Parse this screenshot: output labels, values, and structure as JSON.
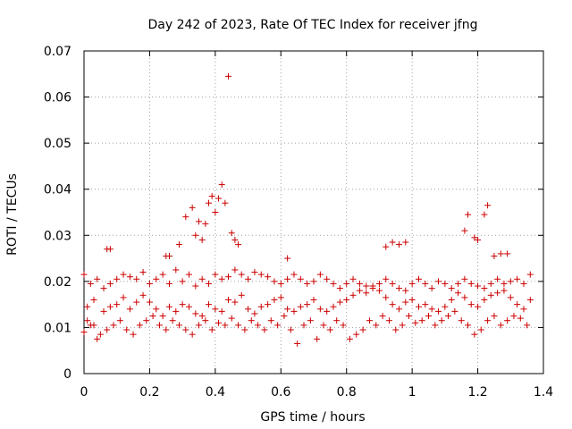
{
  "chart_data": {
    "type": "scatter",
    "title": "Day 242 of 2023, Rate Of TEC Index for receiver jfng",
    "xlabel": "GPS time / hours",
    "ylabel": "ROTI / TECUs",
    "xlim": [
      0,
      1.4
    ],
    "ylim": [
      0,
      0.07
    ],
    "x_ticks": [
      0,
      0.2,
      0.4,
      0.6,
      0.8,
      1.0,
      1.2,
      1.4
    ],
    "x_tick_labels": [
      "0",
      "0.2",
      "0.4",
      "0.6",
      "0.8",
      "1",
      "1.2",
      "1.4"
    ],
    "y_ticks": [
      0,
      0.01,
      0.02,
      0.03,
      0.04,
      0.05,
      0.06,
      0.07
    ],
    "y_tick_labels": [
      "0",
      "0.01",
      "0.02",
      "0.03",
      "0.04",
      "0.05",
      "0.06",
      "0.07"
    ],
    "grid": true,
    "marker": "+",
    "marker_color": "#cc0000",
    "series": [
      {
        "name": "ROTI",
        "x": [
          0.0,
          0.01,
          0.02,
          0.03,
          0.04,
          0.06,
          0.08,
          0.1,
          0.12,
          0.14,
          0.16,
          0.18,
          0.2,
          0.22,
          0.24,
          0.26,
          0.28,
          0.3,
          0.32,
          0.34,
          0.36,
          0.38,
          0.4,
          0.42,
          0.44,
          0.46,
          0.48,
          0.5,
          0.52,
          0.54,
          0.56,
          0.58,
          0.6,
          0.62,
          0.64,
          0.66,
          0.68,
          0.7,
          0.72,
          0.74,
          0.76,
          0.78,
          0.8,
          0.82,
          0.84,
          0.86,
          0.88,
          0.9,
          0.92,
          0.94,
          0.96,
          0.98,
          1.0,
          1.02,
          1.04,
          1.06,
          1.08,
          1.1,
          1.12,
          1.14,
          1.16,
          1.18,
          1.2,
          1.22,
          1.24,
          1.26,
          1.28,
          1.3,
          1.32,
          1.34,
          1.36,
          0.0,
          0.02,
          0.04,
          0.06,
          0.08,
          0.1,
          0.12,
          0.14,
          0.16,
          0.18,
          0.2,
          0.22,
          0.24,
          0.26,
          0.28,
          0.3,
          0.32,
          0.34,
          0.36,
          0.38,
          0.4,
          0.42,
          0.44,
          0.46,
          0.48,
          0.5,
          0.52,
          0.54,
          0.56,
          0.58,
          0.6,
          0.62,
          0.64,
          0.66,
          0.68,
          0.7,
          0.72,
          0.74,
          0.76,
          0.78,
          0.8,
          0.82,
          0.84,
          0.86,
          0.88,
          0.9,
          0.92,
          0.94,
          0.96,
          0.98,
          1.0,
          1.02,
          1.04,
          1.06,
          1.08,
          1.1,
          1.12,
          1.14,
          1.16,
          1.18,
          1.2,
          1.22,
          1.24,
          1.26,
          1.28,
          1.3,
          1.32,
          1.34,
          1.36,
          0.01,
          0.03,
          0.05,
          0.07,
          0.09,
          0.11,
          0.13,
          0.15,
          0.17,
          0.19,
          0.21,
          0.23,
          0.25,
          0.27,
          0.29,
          0.31,
          0.33,
          0.35,
          0.37,
          0.39,
          0.41,
          0.43,
          0.45,
          0.47,
          0.49,
          0.51,
          0.53,
          0.55,
          0.57,
          0.59,
          0.61,
          0.63,
          0.65,
          0.67,
          0.69,
          0.71,
          0.73,
          0.75,
          0.77,
          0.79,
          0.81,
          0.83,
          0.85,
          0.87,
          0.89,
          0.91,
          0.93,
          0.95,
          0.97,
          0.99,
          1.01,
          1.03,
          1.05,
          1.07,
          1.09,
          1.11,
          1.13,
          1.15,
          1.17,
          1.19,
          1.21,
          1.23,
          1.25,
          1.27,
          1.29,
          1.31,
          1.33,
          1.35,
          0.29,
          0.31,
          0.33,
          0.34,
          0.35,
          0.36,
          0.37,
          0.38,
          0.39,
          0.4,
          0.41,
          0.42,
          0.43,
          0.44,
          0.45,
          0.46,
          0.47,
          0.08,
          0.07,
          0.25,
          0.26,
          0.62,
          0.92,
          0.94,
          0.96,
          0.98,
          1.16,
          1.17,
          1.19,
          1.2,
          1.22,
          1.23,
          1.25,
          1.27,
          1.29
        ],
        "y": [
          0.009,
          0.0145,
          0.0105,
          0.016,
          0.0075,
          0.0135,
          0.0145,
          0.015,
          0.0165,
          0.014,
          0.0155,
          0.017,
          0.0155,
          0.014,
          0.0125,
          0.0145,
          0.0135,
          0.015,
          0.0145,
          0.013,
          0.0125,
          0.015,
          0.014,
          0.0135,
          0.016,
          0.0155,
          0.017,
          0.014,
          0.013,
          0.0145,
          0.015,
          0.016,
          0.0165,
          0.014,
          0.0135,
          0.0145,
          0.015,
          0.016,
          0.014,
          0.0135,
          0.0145,
          0.0155,
          0.016,
          0.017,
          0.018,
          0.0175,
          0.019,
          0.018,
          0.0165,
          0.015,
          0.014,
          0.0155,
          0.016,
          0.0145,
          0.015,
          0.014,
          0.0135,
          0.0145,
          0.016,
          0.0175,
          0.0165,
          0.015,
          0.0145,
          0.016,
          0.017,
          0.0175,
          0.018,
          0.0165,
          0.015,
          0.014,
          0.016,
          0.0215,
          0.0195,
          0.0205,
          0.0185,
          0.0195,
          0.0205,
          0.0215,
          0.021,
          0.0205,
          0.022,
          0.0195,
          0.0205,
          0.0215,
          0.0195,
          0.0225,
          0.02,
          0.0215,
          0.019,
          0.0205,
          0.0195,
          0.0215,
          0.0205,
          0.021,
          0.0225,
          0.0215,
          0.0205,
          0.022,
          0.0215,
          0.021,
          0.02,
          0.0195,
          0.0205,
          0.0215,
          0.0205,
          0.0195,
          0.02,
          0.0215,
          0.0205,
          0.0195,
          0.0185,
          0.0195,
          0.0205,
          0.0195,
          0.019,
          0.0185,
          0.0195,
          0.0205,
          0.0195,
          0.0185,
          0.018,
          0.0195,
          0.0205,
          0.0195,
          0.0185,
          0.02,
          0.0195,
          0.0185,
          0.0195,
          0.0205,
          0.0195,
          0.019,
          0.0185,
          0.0195,
          0.0205,
          0.0195,
          0.02,
          0.0205,
          0.0195,
          0.0215,
          0.0115,
          0.0105,
          0.0085,
          0.0095,
          0.0105,
          0.0115,
          0.0095,
          0.0085,
          0.0105,
          0.0115,
          0.0125,
          0.0105,
          0.0095,
          0.0115,
          0.0105,
          0.0095,
          0.0085,
          0.0105,
          0.0115,
          0.0095,
          0.011,
          0.0105,
          0.012,
          0.0105,
          0.0095,
          0.0115,
          0.0105,
          0.0095,
          0.0115,
          0.0105,
          0.0125,
          0.0095,
          0.0065,
          0.0105,
          0.0115,
          0.0075,
          0.0105,
          0.0095,
          0.0115,
          0.0105,
          0.0075,
          0.0085,
          0.0095,
          0.0115,
          0.0105,
          0.0125,
          0.0115,
          0.0095,
          0.0105,
          0.0125,
          0.011,
          0.0115,
          0.0125,
          0.0105,
          0.0115,
          0.0125,
          0.0135,
          0.0115,
          0.0105,
          0.0085,
          0.0095,
          0.0115,
          0.0125,
          0.0105,
          0.0115,
          0.0125,
          0.012,
          0.0105,
          0.028,
          0.034,
          0.036,
          0.03,
          0.033,
          0.029,
          0.0325,
          0.037,
          0.0385,
          0.035,
          0.038,
          0.041,
          0.037,
          0.0645,
          0.0305,
          0.029,
          0.028,
          0.027,
          0.027,
          0.0255,
          0.0255,
          0.025,
          0.0275,
          0.0285,
          0.028,
          0.0285,
          0.031,
          0.0345,
          0.0295,
          0.029,
          0.0345,
          0.0365,
          0.0255,
          0.026,
          0.026
        ]
      }
    ]
  }
}
